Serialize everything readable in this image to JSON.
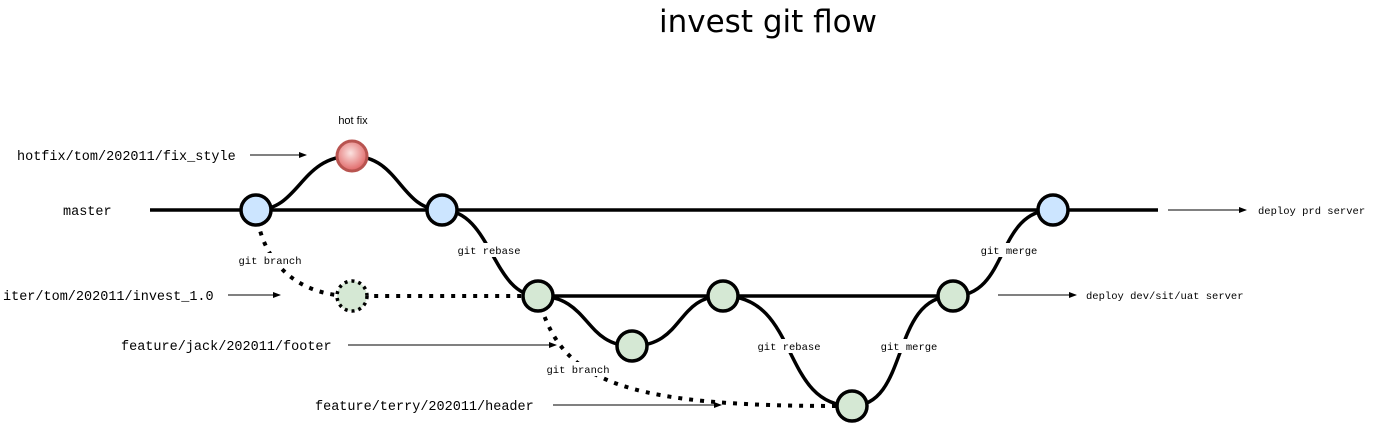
{
  "title": "invest git flow",
  "branches": {
    "hotfix": "hotfix/tom/202011/fix_style",
    "master": "master",
    "iter": "iter/tom/202011/invest_1.0",
    "feature_footer": "feature/jack/202011/footer",
    "feature_header": "feature/terry/202011/header"
  },
  "labels": {
    "hot_fix": "hot fix",
    "git_branch_1": "git branch",
    "git_rebase_1": "git rebase",
    "git_branch_2": "git branch",
    "git_rebase_2": "git rebase",
    "git_merge_1": "git merge",
    "git_merge_2": "git merge"
  },
  "deploy": {
    "prd": "deploy prd server",
    "dev": "deploy dev/sit/uat server"
  },
  "colors": {
    "master_commit": "#cce5ff",
    "hotfix_commit": "#f8cecc",
    "hotfix_commit_dark": "#e06666",
    "feature_commit": "#d5e8d4",
    "stroke": "#000000"
  }
}
